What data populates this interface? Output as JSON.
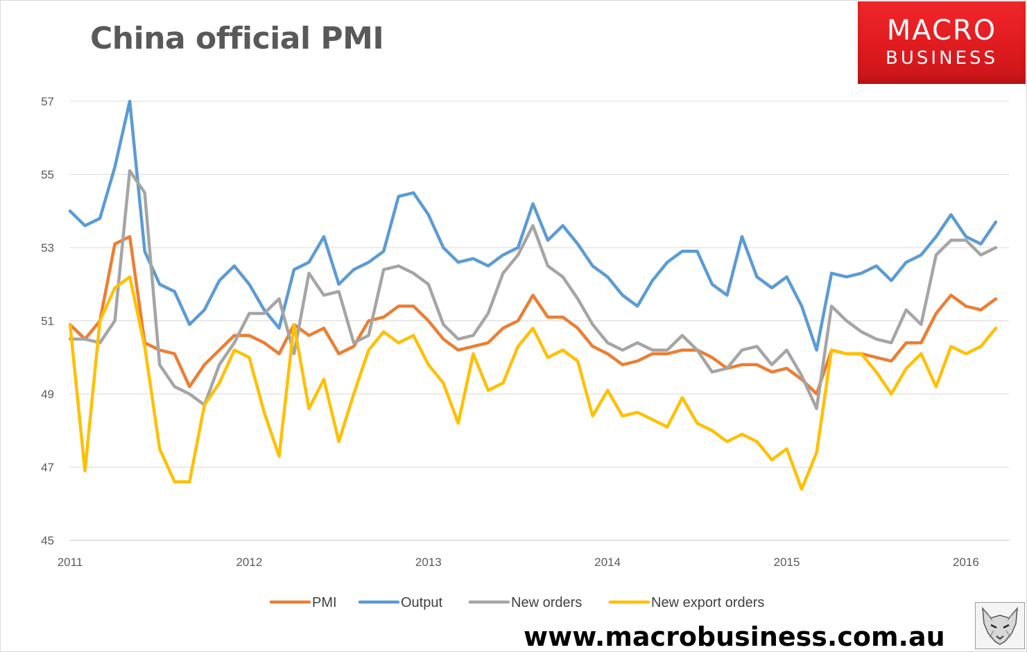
{
  "header": {
    "title": "China official PMI"
  },
  "brand": {
    "line1": "MACRO",
    "line2": "BUSINESS",
    "color": "#e32326"
  },
  "footer": {
    "url": "www.macrobusiness.com.au",
    "icon": "wolf-logo-icon"
  },
  "chart_data": {
    "type": "line",
    "title": "China official PMI",
    "xlabel": "",
    "ylabel": "",
    "ylim": [
      45,
      57
    ],
    "yticks": [
      "45",
      "47",
      "49",
      "51",
      "53",
      "55",
      "57"
    ],
    "xticks": [
      "2011",
      "2012",
      "2013",
      "2014",
      "2015",
      "2016"
    ],
    "x_start": "2011-01",
    "x_end": "2016-03",
    "grid": true,
    "legend": "bottom",
    "series": [
      {
        "name": "PMI",
        "color": "#ed7d31",
        "values": [
          50.9,
          50.5,
          51.0,
          53.1,
          53.3,
          50.4,
          50.2,
          50.1,
          49.2,
          49.8,
          50.2,
          50.6,
          50.6,
          50.4,
          50.1,
          50.9,
          50.6,
          50.8,
          50.1,
          50.3,
          51.0,
          51.1,
          51.4,
          51.4,
          51.0,
          50.5,
          50.2,
          50.3,
          50.4,
          50.8,
          51.0,
          51.7,
          51.1,
          51.1,
          50.8,
          50.3,
          50.1,
          49.8,
          49.9,
          50.1,
          50.1,
          50.2,
          50.2,
          50.0,
          49.7,
          49.8,
          49.8,
          49.6,
          49.7,
          49.4,
          49.0,
          50.2,
          50.1,
          50.1,
          50.0,
          49.9,
          50.4,
          50.4,
          51.2,
          51.7,
          51.4,
          51.3,
          51.6
        ]
      },
      {
        "name": "Output",
        "color": "#5b9bd5",
        "values": [
          54.0,
          53.6,
          53.8,
          55.2,
          57.0,
          52.9,
          52.0,
          51.8,
          50.9,
          51.3,
          52.1,
          52.5,
          52.0,
          51.3,
          50.8,
          52.4,
          52.6,
          53.3,
          52.0,
          52.4,
          52.6,
          52.9,
          54.4,
          54.5,
          53.9,
          53.0,
          52.6,
          52.7,
          52.5,
          52.8,
          53.0,
          54.2,
          53.2,
          53.6,
          53.1,
          52.5,
          52.2,
          51.7,
          51.4,
          52.1,
          52.6,
          52.9,
          52.9,
          52.0,
          51.7,
          53.3,
          52.2,
          51.9,
          52.2,
          51.4,
          50.2,
          52.3,
          52.2,
          52.3,
          52.5,
          52.1,
          52.6,
          52.8,
          53.3,
          53.9,
          53.3,
          53.1,
          53.7
        ]
      },
      {
        "name": "New orders",
        "color": "#a5a5a5",
        "values": [
          50.5,
          50.5,
          50.4,
          51.0,
          55.1,
          54.5,
          49.8,
          49.2,
          49.0,
          48.7,
          49.8,
          50.4,
          51.2,
          51.2,
          51.6,
          50.1,
          52.3,
          51.7,
          51.8,
          50.4,
          50.6,
          52.4,
          52.5,
          52.3,
          52.0,
          50.9,
          50.5,
          50.6,
          51.2,
          52.3,
          52.8,
          53.6,
          52.5,
          52.2,
          51.6,
          50.9,
          50.4,
          50.2,
          50.4,
          50.2,
          50.2,
          50.6,
          50.2,
          49.6,
          49.7,
          50.2,
          50.3,
          49.8,
          50.2,
          49.5,
          48.6,
          51.4,
          51.0,
          50.7,
          50.5,
          50.4,
          51.3,
          50.9,
          52.8,
          53.2,
          53.2,
          52.8,
          53.0
        ]
      },
      {
        "name": "New export orders",
        "color": "#ffc000",
        "values": [
          50.9,
          46.9,
          51.0,
          51.9,
          52.2,
          50.3,
          47.5,
          46.6,
          46.6,
          48.7,
          49.3,
          50.2,
          50.0,
          48.5,
          47.3,
          50.9,
          48.6,
          49.4,
          47.7,
          49.0,
          50.2,
          50.7,
          50.4,
          50.6,
          49.8,
          49.3,
          48.2,
          50.1,
          49.1,
          49.3,
          50.3,
          50.8,
          50.0,
          50.2,
          49.9,
          48.4,
          49.1,
          48.4,
          48.5,
          48.3,
          48.1,
          48.9,
          48.2,
          48.0,
          47.7,
          47.9,
          47.7,
          47.2,
          47.5,
          46.4,
          47.4,
          50.2,
          50.1,
          50.1,
          49.6,
          49.0,
          49.7,
          50.1,
          49.2,
          50.3,
          50.1,
          50.3,
          50.8
        ]
      }
    ]
  }
}
